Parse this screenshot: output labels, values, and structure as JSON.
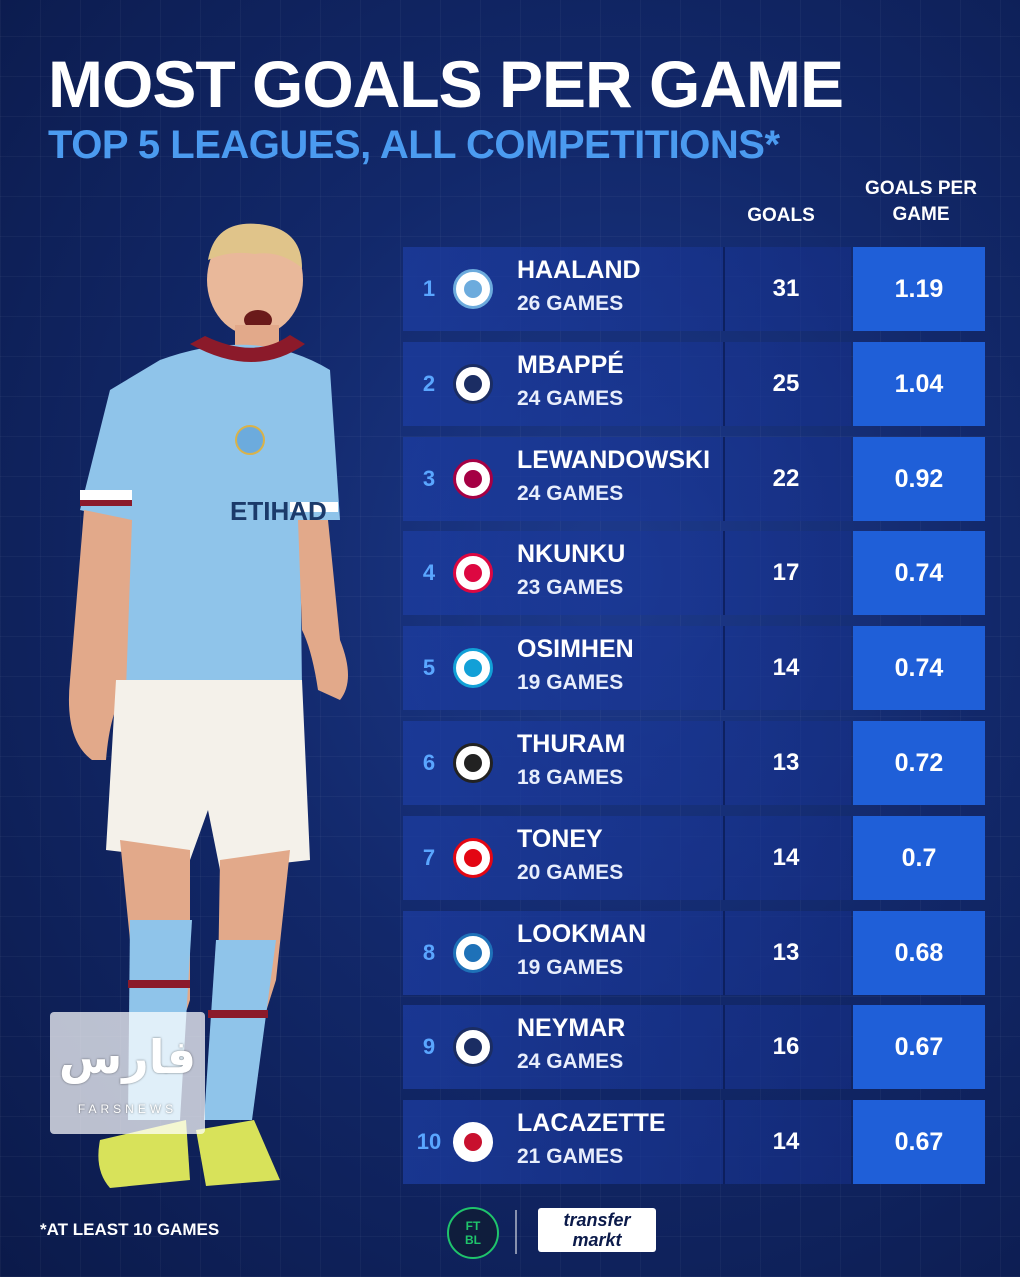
{
  "title": "MOST GOALS PER GAME",
  "subtitle": "TOP 5 LEAGUES, ALL COMPETITIONS*",
  "columns": {
    "goals": "GOALS",
    "goals_per_game": "GOALS PER GAME"
  },
  "rows": [
    {
      "rank": "1",
      "name": "HAALAND",
      "games": "26 GAMES",
      "goals": "31",
      "gpg": "1.19",
      "club_icon": "man-city-crest-icon",
      "crest_color": "#6cabdd"
    },
    {
      "rank": "2",
      "name": "MBAPPÉ",
      "games": "24 GAMES",
      "goals": "25",
      "gpg": "1.04",
      "club_icon": "psg-crest-icon",
      "crest_color": "#1b2d63"
    },
    {
      "rank": "3",
      "name": "LEWANDOWSKI",
      "games": "24 GAMES",
      "goals": "22",
      "gpg": "0.92",
      "club_icon": "barcelona-crest-icon",
      "crest_color": "#a50044"
    },
    {
      "rank": "4",
      "name": "NKUNKU",
      "games": "23 GAMES",
      "goals": "17",
      "gpg": "0.74",
      "club_icon": "rb-leipzig-crest-icon",
      "crest_color": "#dd0741"
    },
    {
      "rank": "5",
      "name": "OSIMHEN",
      "games": "19 GAMES",
      "goals": "14",
      "gpg": "0.74",
      "club_icon": "napoli-crest-icon",
      "crest_color": "#12a0d7"
    },
    {
      "rank": "6",
      "name": "THURAM",
      "games": "18 GAMES",
      "goals": "13",
      "gpg": "0.72",
      "club_icon": "gladbach-crest-icon",
      "crest_color": "#222222"
    },
    {
      "rank": "7",
      "name": "TONEY",
      "games": "20 GAMES",
      "goals": "14",
      "gpg": "0.7",
      "club_icon": "brentford-crest-icon",
      "crest_color": "#e30613"
    },
    {
      "rank": "8",
      "name": "LOOKMAN",
      "games": "19 GAMES",
      "goals": "13",
      "gpg": "0.68",
      "club_icon": "atalanta-crest-icon",
      "crest_color": "#1e71b8"
    },
    {
      "rank": "9",
      "name": "NEYMAR",
      "games": "24 GAMES",
      "goals": "16",
      "gpg": "0.67",
      "club_icon": "psg-crest-icon",
      "crest_color": "#1b2d63"
    },
    {
      "rank": "10",
      "name": "LACAZETTE",
      "games": "21 GAMES",
      "goals": "14",
      "gpg": "0.67",
      "club_icon": "lyon-crest-icon",
      "crest_color": "#ffffff"
    }
  ],
  "footnote": "*AT LEAST 10 GAMES",
  "logos": {
    "ftbl_top": "FT",
    "ftbl_bottom": "BL",
    "transfermarkt_top": "transfer",
    "transfermarkt_bottom": "markt"
  },
  "watermark": {
    "main": "فارس",
    "sub": "FARSNEWS"
  },
  "colors": {
    "accent_blue": "#4b9bf0",
    "gpg_cell": "#1f5fd8",
    "background": "#12286a"
  }
}
